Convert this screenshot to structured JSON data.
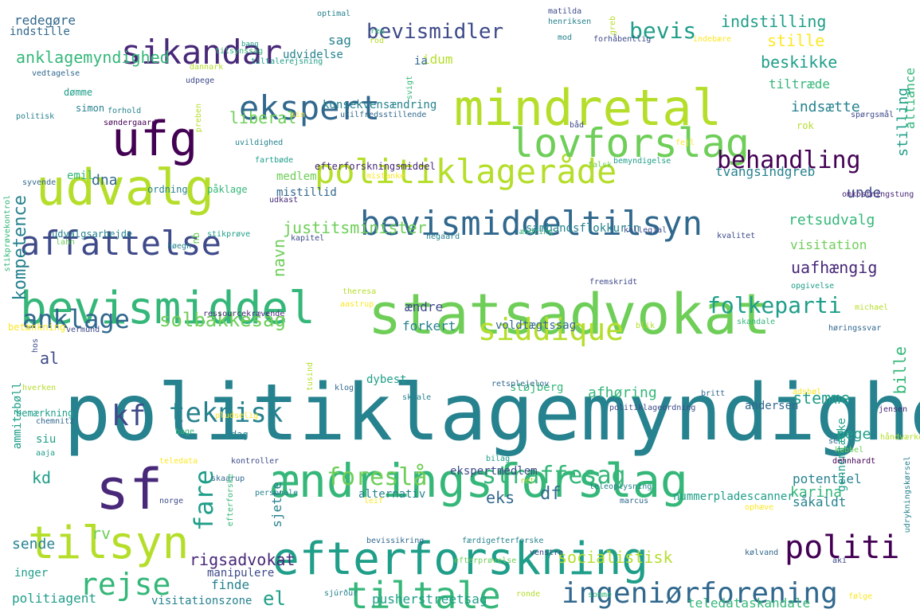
{
  "colors": {
    "background": "#ffffff",
    "palette": [
      "#440154",
      "#482878",
      "#3e4a89",
      "#31688e",
      "#26828e",
      "#1f9e89",
      "#35b779",
      "#6ece58",
      "#b5de2b",
      "#fde725"
    ]
  },
  "words": [
    "politiklagemyndighed",
    "statsadvokat",
    "ændringsforslag",
    "mindretal",
    "efterforskning",
    "udvalg",
    "tilsyn",
    "bevismiddel",
    "bevismiddeltilsyn",
    "affattelse",
    "politiklageråde",
    "lovforslag",
    "sikandar",
    "ufg",
    "ekspert",
    "sf",
    "tiltale",
    "ingeniørforening",
    "siddique",
    "anklage",
    "teknisk",
    "straffesag",
    "foreslå",
    "behandling",
    "bevis",
    "politi",
    "bevismidler",
    "kf",
    "rejse",
    "folkeparti",
    "solbakkesag",
    "anklagemyndighed",
    "justitsminister",
    "retsudvalg",
    "socialistisk",
    "rigsadvokat",
    "indstilling",
    "stille",
    "beskikke",
    "liberal",
    "fare",
    "stemme",
    "afhøring",
    "indsætte",
    "uafhængig",
    "konsekvensændring",
    "tvangsindgreb",
    "unde",
    "sambandsflokkurin",
    "visitation",
    "efterforskningsmiddel",
    "medlem",
    "mistillid",
    "dna",
    "navn",
    "kompetence",
    "emil",
    "el",
    "sende",
    "rv",
    "kd",
    "eks",
    "df",
    "karina",
    "potentiel",
    "såkaldt",
    "forkert",
    "voldtægtssag",
    "dybest",
    "støjberg",
    "sjette",
    "pege",
    "andersen",
    "nummerpladescanner",
    "teledataskandale",
    "pusherstreetsag",
    "visitationszone",
    "politiagent",
    "manipulere",
    "finde",
    "inger",
    "alternativ",
    "ekspertmedlem",
    "bille",
    "stilling",
    "alliance",
    "tiltræde",
    "ændre",
    "sag",
    "idum",
    "udvidelse",
    "ia",
    "redegøre",
    "indstille",
    "optimal",
    "matilda",
    "henriksen",
    "greb",
    "reu",
    "rod",
    "mod",
    "forhåbentlig",
    "indebære",
    "bang",
    "tilsynssag",
    "dannark",
    "tiltalerejsning",
    "vedtagelse",
    "udpege",
    "svigt",
    "dømme",
    "simon",
    "forhold",
    "politisk",
    "søndergaard",
    "preben",
    "sin",
    "utilfredsstillende",
    "spørgsmål",
    "rok",
    "båd",
    "uvildighed",
    "fejl",
    "fartbøde",
    "bemyndigelse",
    "falsk",
    "mistanke",
    "syvende",
    "ordning",
    "påklage",
    "udkast",
    "omkostningstung",
    "stikprøvekontrol",
    "udvalgsarbejde",
    "stikprøve",
    "nb",
    "lahn",
    "høegh",
    "kapitel",
    "hegaard",
    "ændring",
    "kollegial",
    "kvalitet",
    "theresa",
    "fremskridt",
    "opgivelse",
    "michael",
    "aastrup",
    "betænkning",
    "ressourcekrævende",
    "vermund",
    "blik",
    "skandale",
    "høringssvar",
    "hos",
    "tusind",
    "al",
    "ammitzbøll",
    "hverken",
    "klog",
    "retsplejelov",
    "skaale",
    "adsbøl",
    "britt",
    "bemærkning",
    "chemnitz",
    "pludselig",
    "politiklageordning",
    "jensen",
    "siu",
    "dag",
    "gennemtænke",
    "se",
    "håndværker",
    "aaja",
    "teledata",
    "bage",
    "kontroller",
    "bilag",
    "kobbel",
    "dehnhardt",
    "skaarup",
    "efterforske",
    "personale",
    "ret",
    "teleoplysning",
    "marcus",
    "leif",
    "norge",
    "ophæve",
    "bevissikring",
    "færdigefterforske",
    "venstre",
    "kølvand",
    "aki",
    "udrykningskørsel",
    "efterprøvelse",
    "sjúrður",
    "ronde",
    "somme",
    "følge"
  ]
}
